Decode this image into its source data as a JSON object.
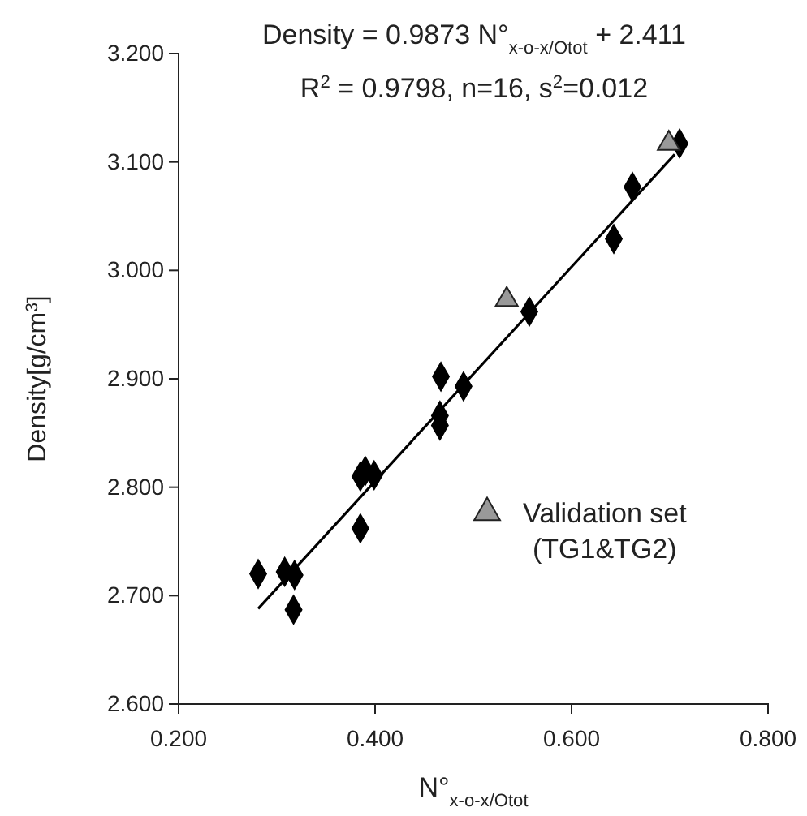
{
  "chart_data": {
    "type": "scatter",
    "title": "Density = 0.9873 N°$_{x-o-x/Otot}$ + 2.411",
    "subtitle": "R$^{2}$ = 0.9798, n=16, s$^{2}$=0.012",
    "xlabel": "N°$_{x-o-x/Otot}$",
    "ylabel": "Density[g/cm$^{3}$]",
    "xlim": [
      0.2,
      0.8
    ],
    "xticks": [
      {
        "value": 0.2,
        "label": "0.200"
      },
      {
        "value": 0.4,
        "label": "0.400"
      },
      {
        "value": 0.6,
        "label": "0.600"
      },
      {
        "value": 0.8,
        "label": "0.800"
      }
    ],
    "ylim": [
      2.6,
      3.2
    ],
    "yticks": [
      {
        "value": 2.6,
        "label": "2.600"
      },
      {
        "value": 2.7,
        "label": "2.700"
      },
      {
        "value": 2.8,
        "label": "2.800"
      },
      {
        "value": 2.9,
        "label": "2.900"
      },
      {
        "value": 3.0,
        "label": "3.000"
      },
      {
        "value": 3.1,
        "label": "3.100"
      },
      {
        "value": 3.2,
        "label": "3.200"
      }
    ],
    "grid": false,
    "legend": "right",
    "series": [
      {
        "type": "line",
        "color": "#000000",
        "marker": "none",
        "line_style": "solid",
        "x": [
          0.281,
          0.705
        ],
        "values": [
          2.688,
          3.107
        ]
      },
      {
        "color": "#000000",
        "marker": "diamond",
        "x": [
          0.281,
          0.308,
          0.318,
          0.317,
          0.385,
          0.385,
          0.39,
          0.399,
          0.466,
          0.466,
          0.467,
          0.49,
          0.557,
          0.643,
          0.662,
          0.71
        ],
        "values": [
          2.72,
          2.722,
          2.719,
          2.687,
          2.762,
          2.81,
          2.815,
          2.811,
          2.866,
          2.857,
          2.902,
          2.893,
          2.962,
          3.029,
          3.077,
          3.117
        ]
      },
      {
        "name": "Validation set (TG1&TG2)",
        "color": "#999999",
        "marker": "triangle",
        "x": [
          0.534,
          0.699
        ],
        "values": [
          2.973,
          3.117
        ]
      }
    ]
  }
}
